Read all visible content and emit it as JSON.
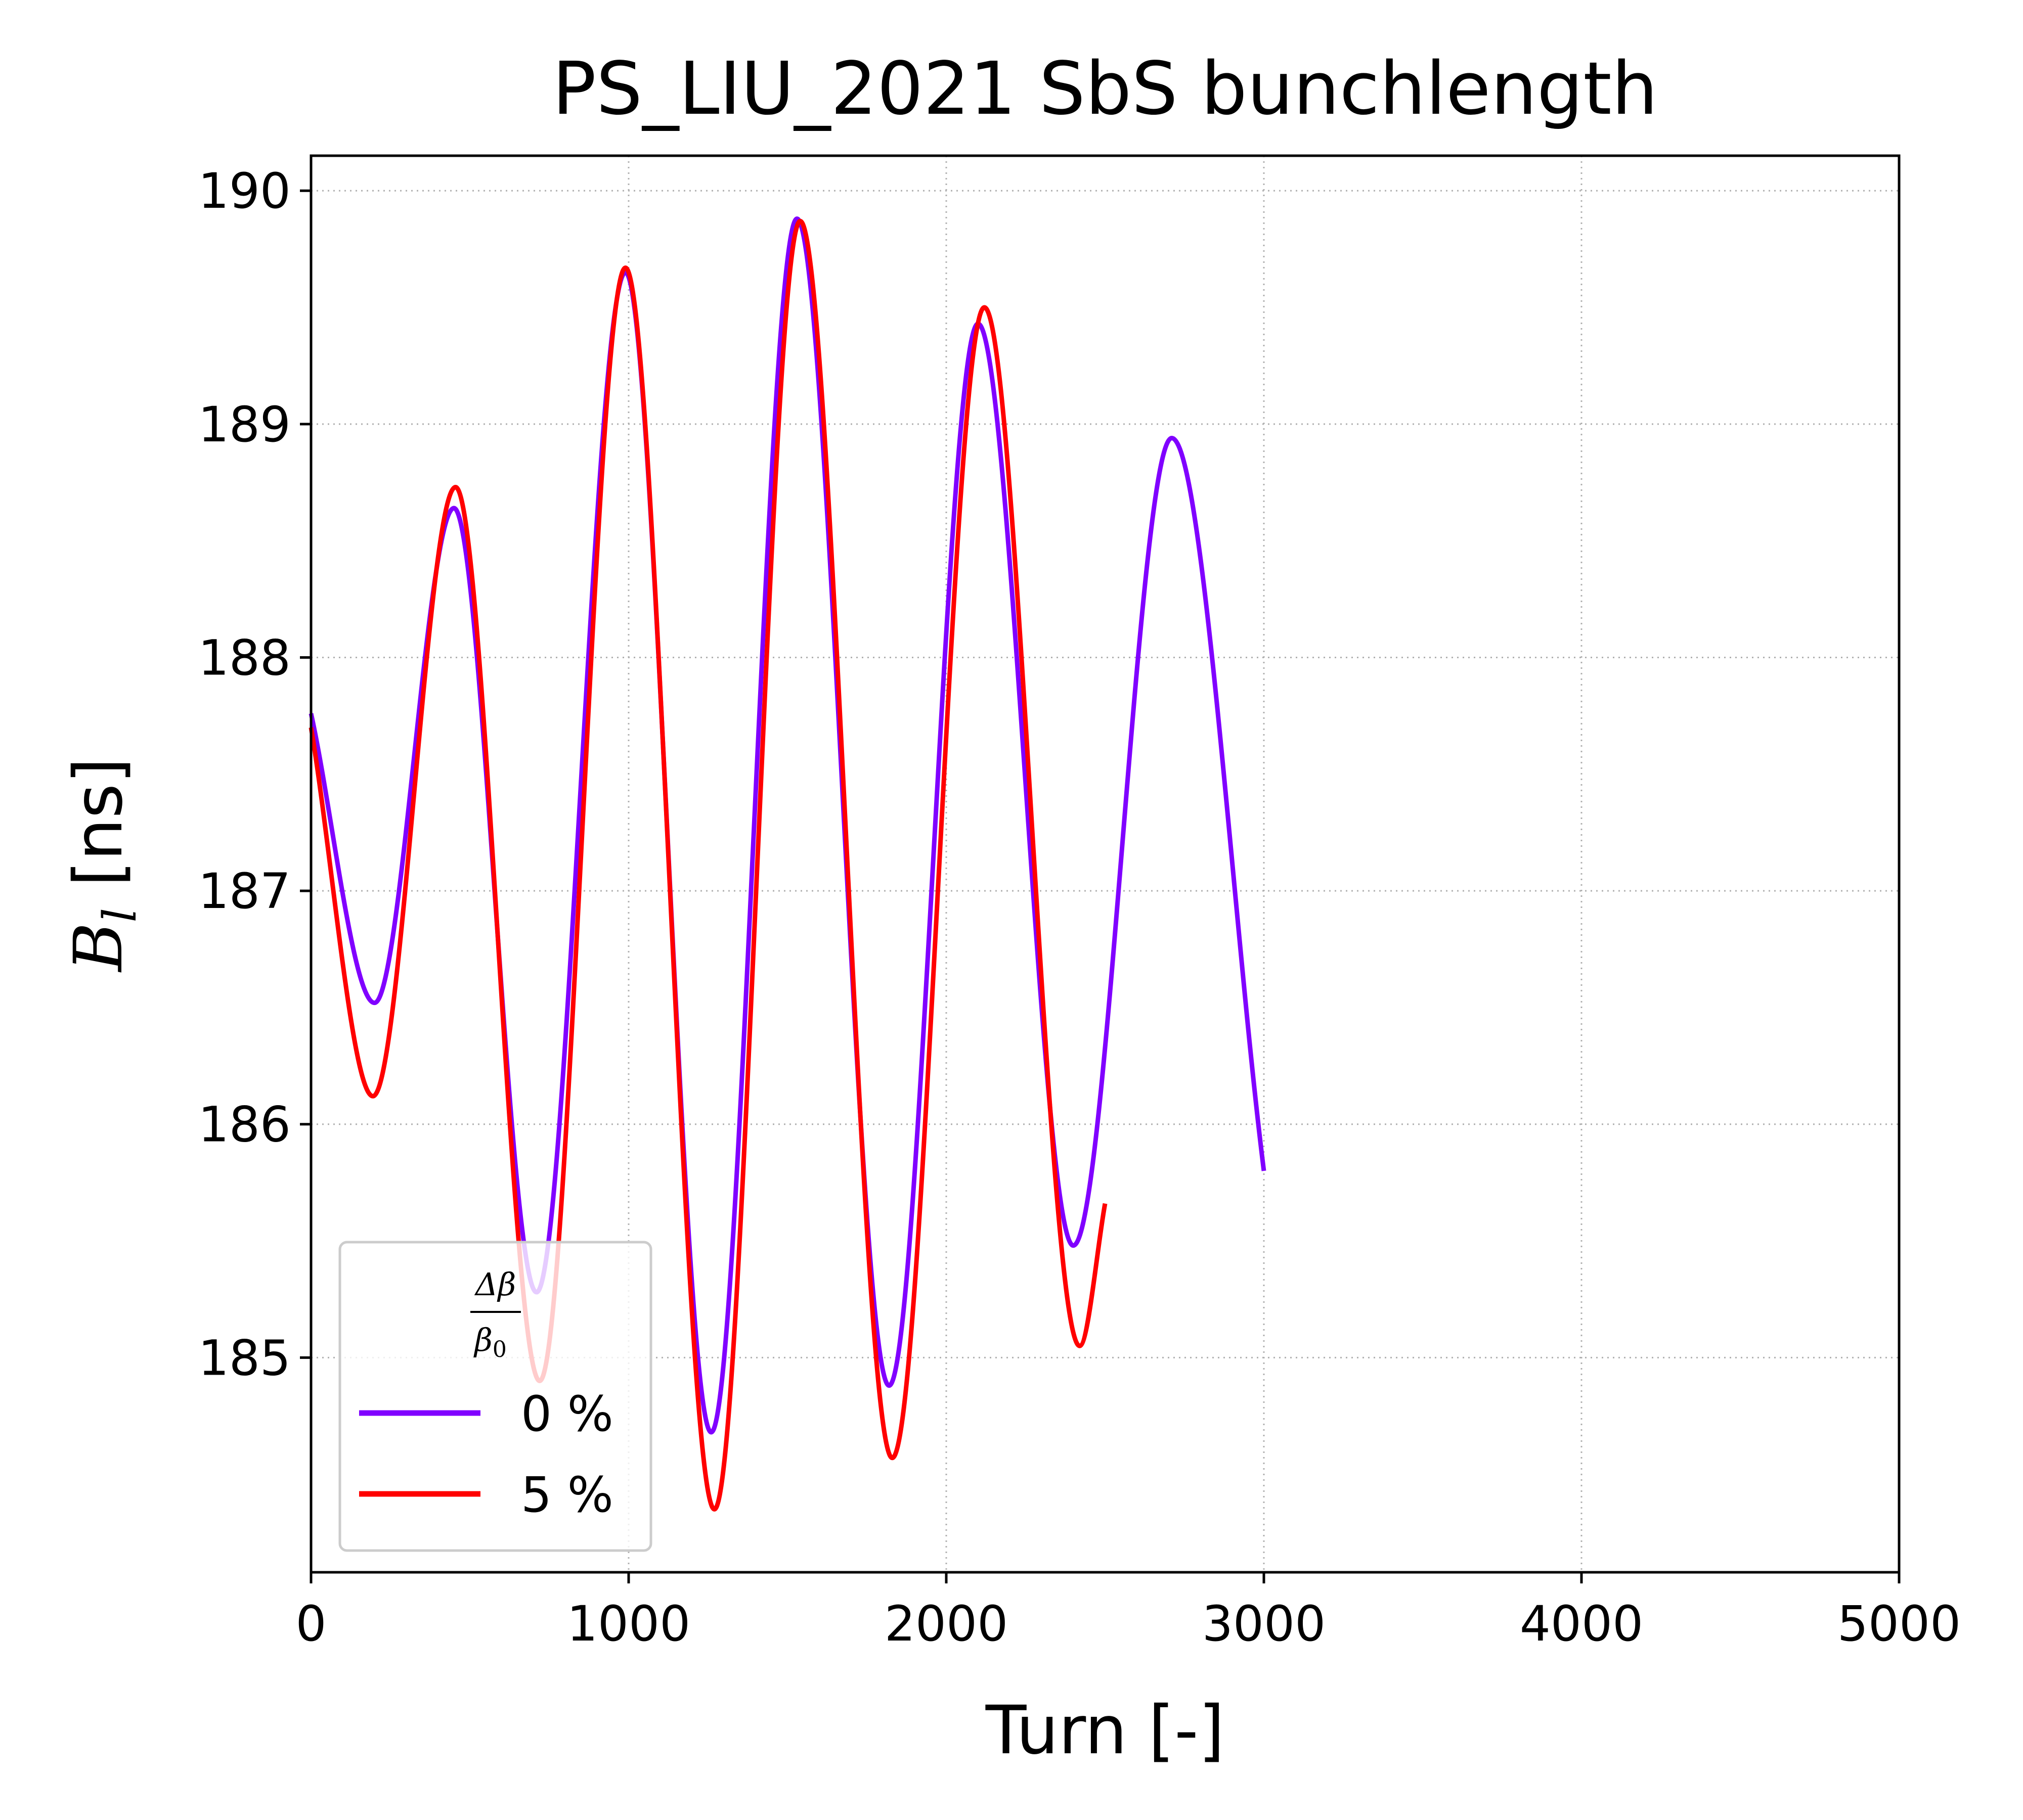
{
  "chart_data": {
    "type": "line",
    "title": "PS_LIU_2021 SbS bunchlength",
    "xlabel": "Turn [-]",
    "ylabel_main": "B",
    "ylabel_sub": "l",
    "ylabel_unit": " [ns]",
    "xlim": [
      0,
      5000
    ],
    "ylim": [
      184.08,
      190.15
    ],
    "xticks": [
      0,
      1000,
      2000,
      3000,
      4000,
      5000
    ],
    "yticks": [
      185,
      186,
      187,
      188,
      189,
      190
    ],
    "grid": true,
    "legend": {
      "placement": "lower-left",
      "title_num": "Δβ",
      "title_den_main": "β",
      "title_den_sub": "0"
    },
    "series": [
      {
        "name": "0 %",
        "color": "#8000ff",
        "points": [
          [
            0,
            187.76
          ],
          [
            200,
            186.52
          ],
          [
            450,
            188.64
          ],
          [
            710,
            185.28
          ],
          [
            990,
            189.65
          ],
          [
            1260,
            184.68
          ],
          [
            1530,
            189.88
          ],
          [
            1820,
            184.88
          ],
          [
            2100,
            189.43
          ],
          [
            2400,
            185.48
          ],
          [
            2710,
            188.94
          ],
          [
            3000,
            185.8
          ]
        ]
      },
      {
        "name": "5 %",
        "color": "#ff0000",
        "points": [
          [
            0,
            187.7
          ],
          [
            195,
            186.12
          ],
          [
            455,
            188.73
          ],
          [
            720,
            184.9
          ],
          [
            990,
            189.67
          ],
          [
            1270,
            184.35
          ],
          [
            1540,
            189.87
          ],
          [
            1830,
            184.57
          ],
          [
            2120,
            189.5
          ],
          [
            2420,
            185.05
          ],
          [
            2500,
            185.66
          ]
        ]
      }
    ]
  }
}
